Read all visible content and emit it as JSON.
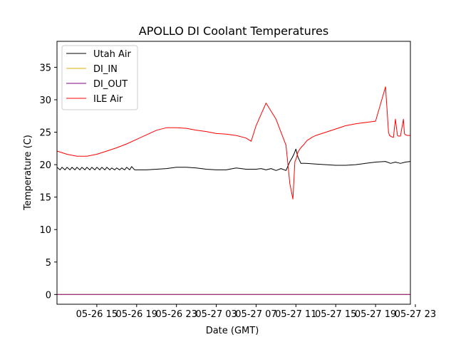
{
  "chart_data": {
    "type": "line",
    "title": "APOLLO DI Coolant Temperatures",
    "xlabel": "Date (GMT)",
    "ylabel": "Temperature (C)",
    "ylim": [
      -1.5,
      39
    ],
    "xlim": [
      11.0,
      46.5
    ],
    "x_unit": "hours since 05-26 00:00 GMT",
    "yticks": [
      0,
      5,
      10,
      15,
      20,
      25,
      30,
      35
    ],
    "ytick_labels": [
      "0",
      "5",
      "10",
      "15",
      "20",
      "25",
      "30",
      "35"
    ],
    "xticks": [
      15,
      19,
      23,
      27,
      31,
      35,
      39,
      43,
      47
    ],
    "xtick_labels": [
      "05-26 15",
      "05-26 19",
      "05-26 23",
      "05-27 03",
      "05-27 07",
      "05-27 11",
      "05-27 15",
      "05-27 19",
      "05-27 23"
    ],
    "legend_position": "upper-left",
    "series": [
      {
        "name": "Utah Air",
        "color": "#000000",
        "x": [
          11.0,
          11.3,
          11.5,
          11.8,
          12.0,
          12.3,
          12.5,
          12.8,
          13.0,
          13.3,
          13.5,
          13.8,
          14.0,
          14.3,
          14.5,
          14.8,
          15.0,
          15.3,
          15.5,
          15.8,
          16.0,
          16.3,
          16.5,
          16.8,
          17.0,
          17.3,
          17.5,
          17.8,
          18.0,
          18.3,
          18.5,
          18.8,
          19.0,
          20.0,
          21.0,
          22.0,
          23.0,
          24.0,
          25.0,
          26.0,
          27.0,
          28.0,
          29.0,
          30.0,
          31.0,
          31.5,
          32.0,
          32.5,
          33.0,
          33.5,
          34.0,
          34.4,
          34.6,
          34.8,
          35.0,
          35.2,
          35.5,
          36.0,
          37.0,
          38.0,
          39.0,
          40.0,
          41.0,
          42.0,
          43.0,
          44.0,
          44.5,
          45.0,
          45.5,
          46.0,
          46.5
        ],
        "y": [
          19.6,
          19.2,
          19.6,
          19.2,
          19.6,
          19.2,
          19.6,
          19.2,
          19.6,
          19.2,
          19.6,
          19.2,
          19.6,
          19.2,
          19.6,
          19.2,
          19.6,
          19.2,
          19.6,
          19.2,
          19.6,
          19.2,
          19.5,
          19.2,
          19.5,
          19.2,
          19.5,
          19.2,
          19.6,
          19.2,
          19.7,
          19.2,
          19.2,
          19.2,
          19.3,
          19.4,
          19.6,
          19.6,
          19.5,
          19.3,
          19.2,
          19.2,
          19.5,
          19.3,
          19.3,
          19.4,
          19.2,
          19.4,
          19.1,
          19.4,
          19.1,
          20.5,
          21.0,
          21.6,
          22.4,
          21.2,
          20.2,
          20.2,
          20.1,
          20.0,
          19.9,
          19.9,
          20.0,
          20.2,
          20.4,
          20.5,
          20.2,
          20.4,
          20.2,
          20.4,
          20.5
        ]
      },
      {
        "name": "DI_IN",
        "color": "#e0b000",
        "x": [
          11.0,
          46.5
        ],
        "y": [
          0.0,
          0.0
        ]
      },
      {
        "name": "DI_OUT",
        "color": "#800080",
        "x": [
          11.0,
          46.5
        ],
        "y": [
          0.0,
          0.0
        ]
      },
      {
        "name": "ILE Air",
        "color": "#ff0000",
        "x": [
          11.0,
          12.0,
          13.0,
          14.0,
          15.0,
          16.0,
          17.0,
          18.0,
          19.0,
          20.0,
          21.0,
          22.0,
          23.0,
          24.0,
          25.0,
          26.0,
          27.0,
          28.0,
          28.5,
          29.0,
          30.0,
          30.5,
          31.0,
          32.0,
          33.0,
          34.0,
          34.4,
          34.7,
          34.9,
          35.0,
          35.1,
          35.2,
          35.4,
          35.6,
          35.8,
          35.9,
          36.0,
          36.1,
          36.3,
          36.6,
          37.0,
          38.0,
          39.0,
          40.0,
          41.0,
          42.0,
          43.0,
          44.0,
          44.3,
          44.4,
          44.6,
          44.8,
          45.0,
          45.2,
          45.3,
          45.5,
          45.8,
          45.9,
          46.0,
          46.2,
          46.5
        ],
        "y": [
          22.1,
          21.6,
          21.3,
          21.3,
          21.6,
          22.1,
          22.6,
          23.2,
          23.9,
          24.6,
          25.3,
          25.7,
          25.7,
          25.6,
          25.3,
          25.1,
          24.8,
          24.7,
          24.6,
          24.5,
          24.1,
          23.6,
          26.0,
          29.5,
          27.0,
          23.0,
          17.0,
          14.7,
          20.5,
          20.8,
          21.3,
          21.9,
          22.4,
          22.8,
          23.1,
          23.3,
          23.5,
          23.7,
          23.9,
          24.2,
          24.5,
          25.0,
          25.5,
          26.0,
          26.3,
          26.5,
          26.7,
          32.0,
          25.0,
          24.5,
          24.3,
          24.2,
          27.0,
          24.5,
          24.4,
          24.4,
          27.0,
          24.8,
          24.6,
          24.5,
          24.5
        ]
      }
    ]
  }
}
